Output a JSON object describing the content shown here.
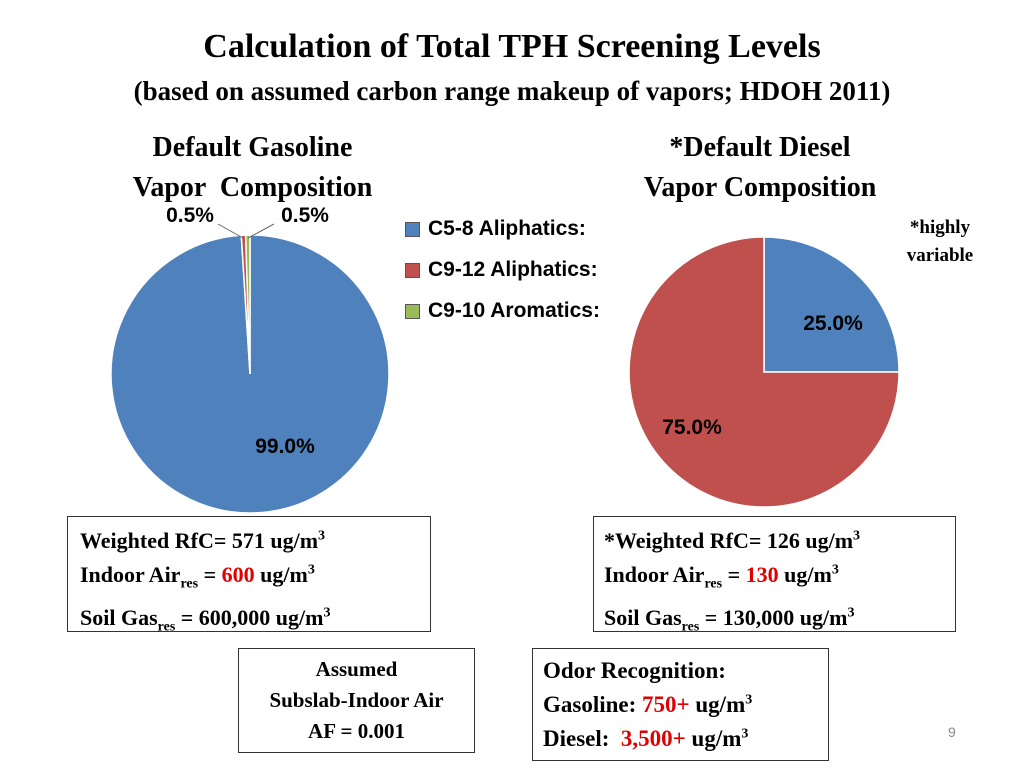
{
  "title": "Calculation of Total TPH Screening Levels",
  "subtitle": "(based on assumed carbon range makeup of vapors; HDOH 2011)",
  "colors": {
    "c58": "#4f81bd",
    "c912": "#c0504d",
    "c910": "#9bbb59",
    "accent_red": "#e00000"
  },
  "legend": [
    "C5-8 Aliphatics:",
    "C9-12 Aliphatics:",
    "C9-10 Aromatics:"
  ],
  "gasoline": {
    "heading_line1": "Default Gasoline",
    "heading_line2": "Vapor  Composition"
  },
  "diesel": {
    "heading_line1": "*Default Diesel",
    "heading_line2": "Vapor Composition",
    "note_line1": "*highly",
    "note_line2": "variable"
  },
  "chart_data": [
    {
      "type": "pie",
      "categories": [
        "C5-8 Aliphatics:",
        "C9-12 Aliphatics:",
        "C9-10 Aromatics:"
      ],
      "values": [
        99.0,
        0.5,
        0.5
      ],
      "labels": [
        "99.0%",
        "0.5%",
        "0.5%"
      ],
      "legend_position": "right"
    },
    {
      "type": "pie",
      "categories": [
        "C5-8 Aliphatics:",
        "C9-12 Aliphatics:"
      ],
      "values": [
        25.0,
        75.0
      ],
      "labels": [
        "25.0%",
        "75.0%"
      ]
    }
  ],
  "gas_box": {
    "l1_pre": "Weighted RfC= 571 ug/m",
    "l1_sup": "3",
    "l2_pre": "Indoor Air",
    "l2_sub": "res",
    "l2_mid": " = ",
    "l2_val": "600",
    "l2_post": " ug/m",
    "l2_sup": "3",
    "l3_pre": "Soil Gas",
    "l3_sub": "res",
    "l3_post": " = 600,000 ug/m",
    "l3_sup": "3"
  },
  "dsl_box": {
    "l1_pre": "*Weighted RfC= 126 ug/m",
    "l1_sup": "3",
    "l2_pre": "Indoor Air",
    "l2_sub": "res",
    "l2_mid": " = ",
    "l2_val": "130",
    "l2_post": " ug/m",
    "l2_sup": "3",
    "l3_pre": "Soil Gas",
    "l3_sub": "res",
    "l3_post": " = 130,000 ug/m",
    "l3_sup": "3"
  },
  "af_box": {
    "l1": "Assumed",
    "l2": "Subslab-Indoor Air",
    "l3": "AF = 0.001"
  },
  "odor_box": {
    "l1": "Odor Recognition:",
    "l2_pre": "Gasoline: ",
    "l2_val": "750+",
    "l2_post": " ug/m",
    "l2_sup": "3",
    "l3_pre": "Diesel:  ",
    "l3_val": "3,500+",
    "l3_post": " ug/m",
    "l3_sup": "3"
  },
  "page_number": "9"
}
